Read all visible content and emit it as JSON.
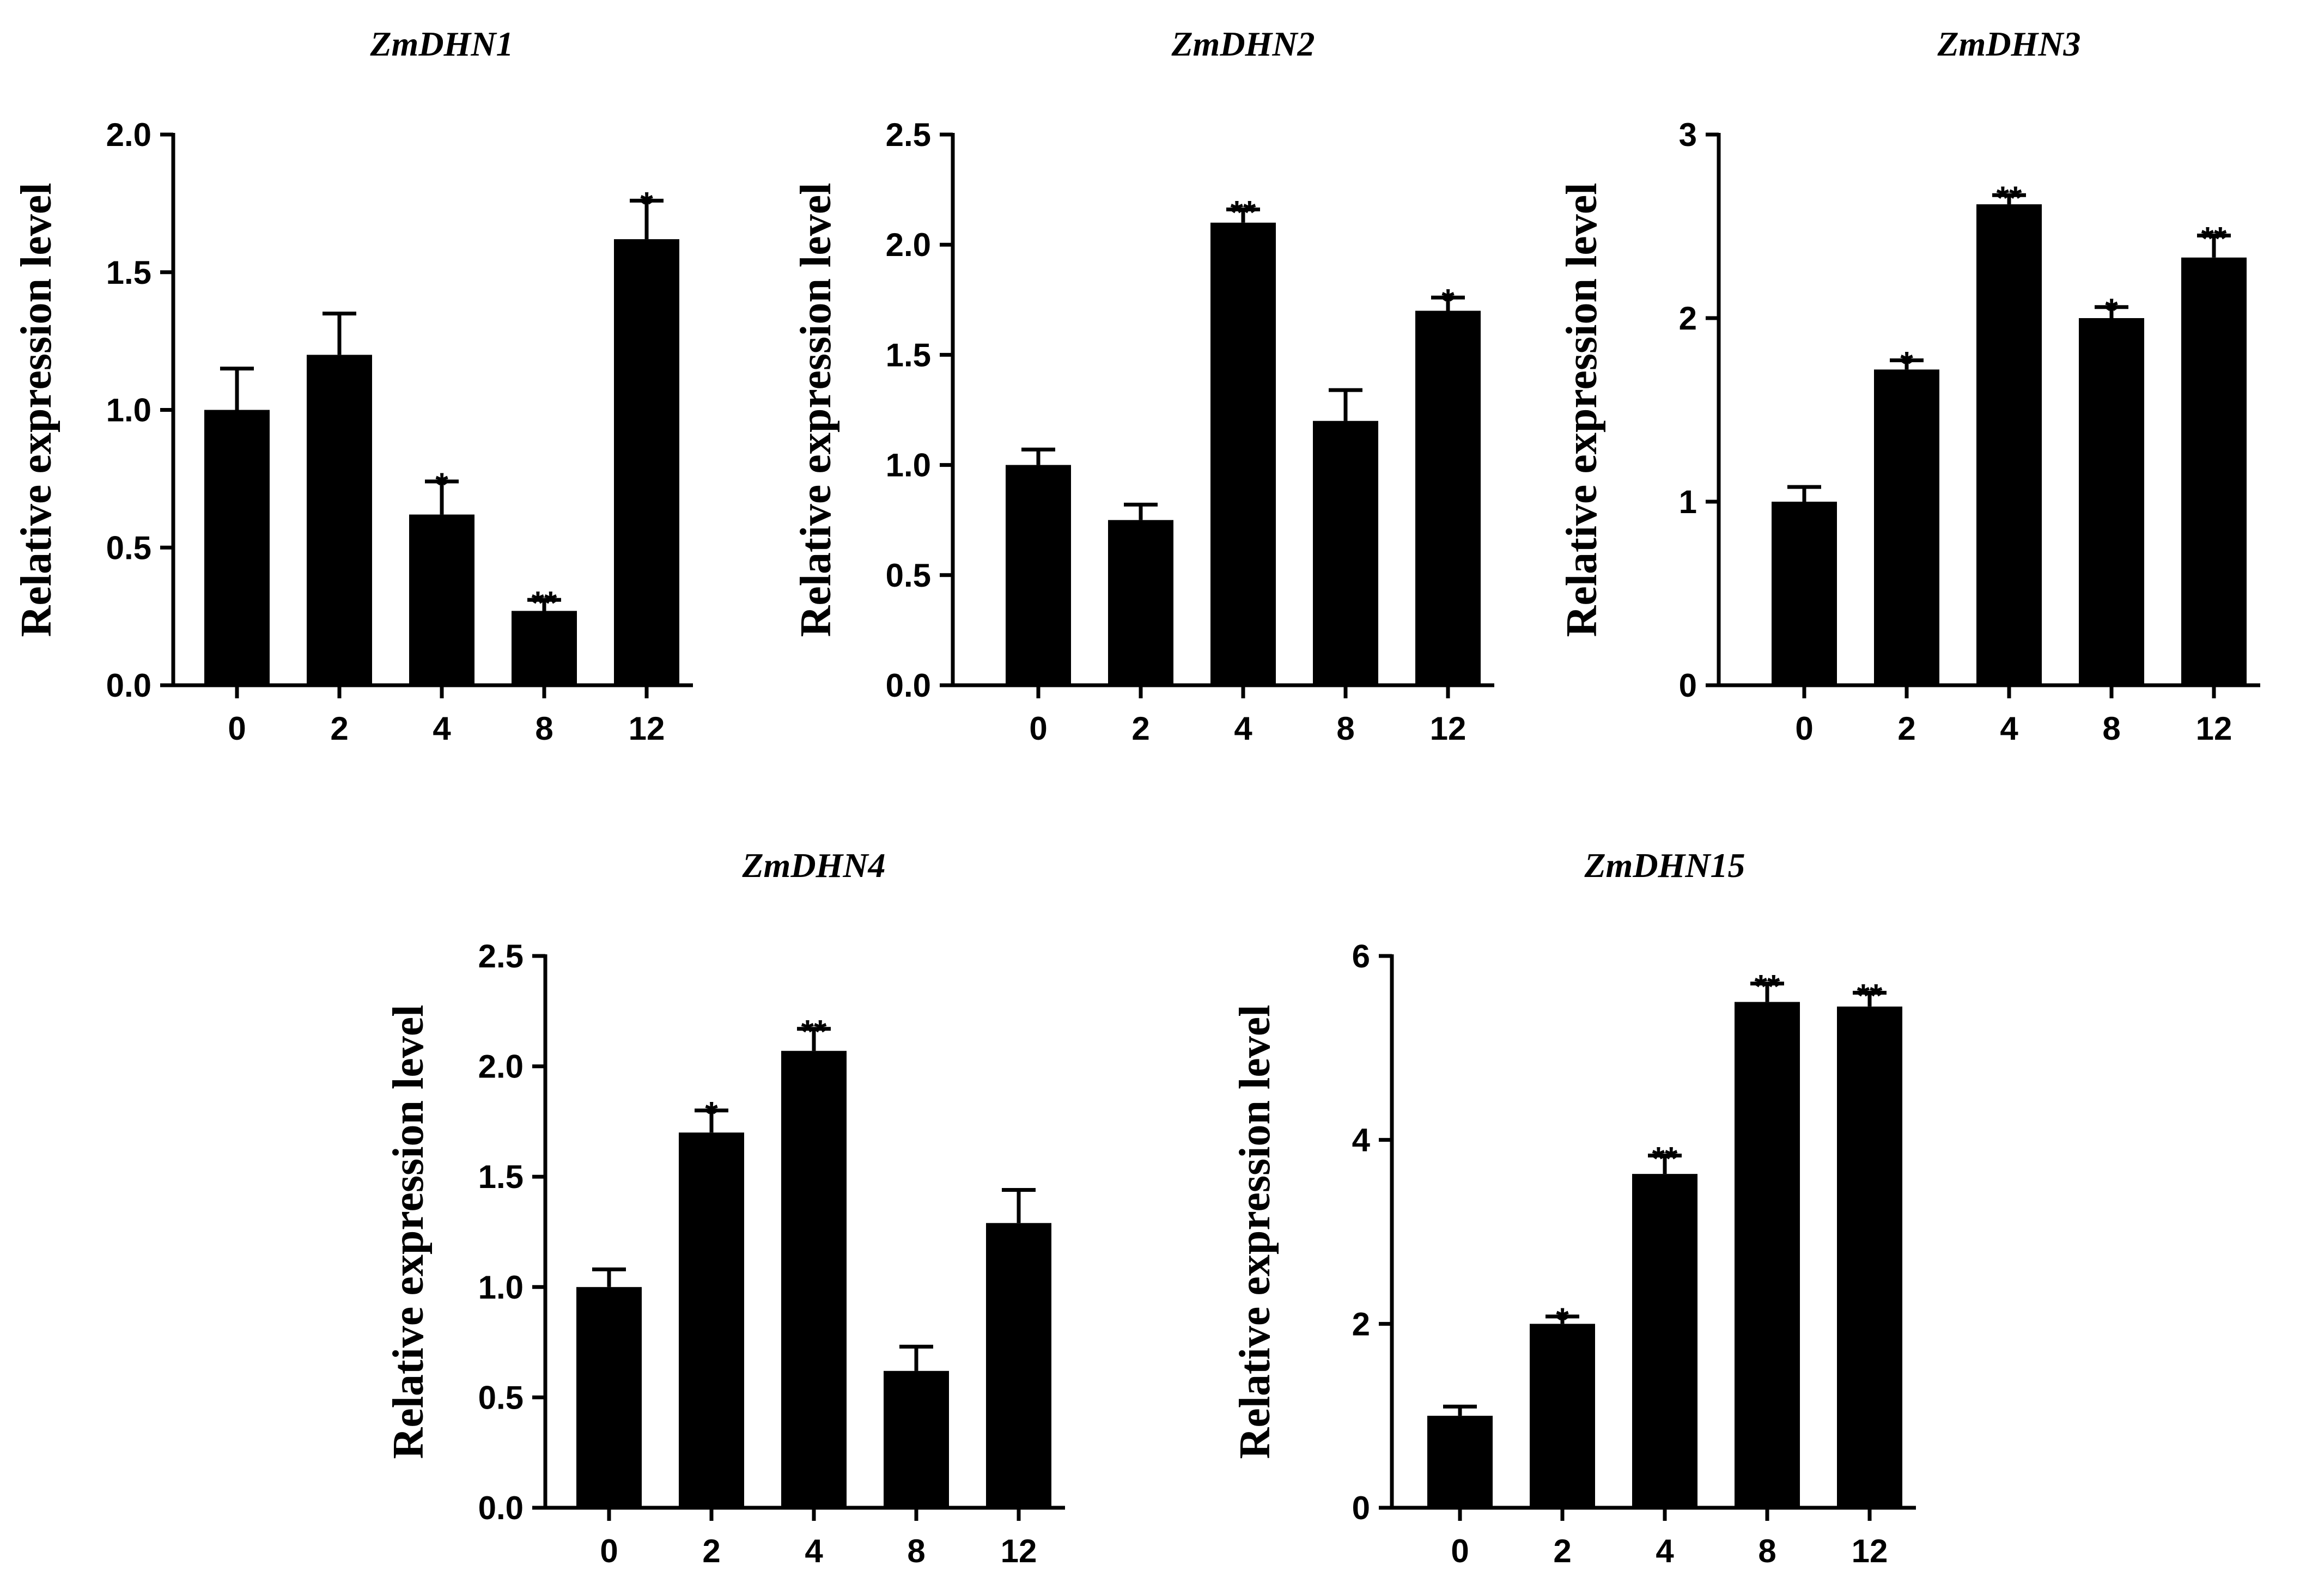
{
  "chart_data": [
    {
      "type": "bar",
      "title": "ZmDHN1",
      "xlabel": "",
      "ylabel": "Relative expression level",
      "categories": [
        "0",
        "2",
        "4",
        "8",
        "12"
      ],
      "values": [
        1.0,
        1.2,
        0.62,
        0.27,
        1.62
      ],
      "errors": [
        0.15,
        0.15,
        0.12,
        0.04,
        0.14
      ],
      "significance": [
        "",
        "",
        "*",
        "**",
        "*"
      ],
      "ylim": [
        0,
        2.0
      ],
      "yticks": [
        "0.0",
        "0.5",
        "1.0",
        "1.5",
        "2.0"
      ],
      "ytick_values": [
        0,
        0.5,
        1.0,
        1.5,
        2.0
      ]
    },
    {
      "type": "bar",
      "title": "ZmDHN2",
      "xlabel": "",
      "ylabel": "Relative expression level",
      "categories": [
        "0",
        "2",
        "4",
        "8",
        "12"
      ],
      "values": [
        1.0,
        0.75,
        2.1,
        1.2,
        1.7
      ],
      "errors": [
        0.07,
        0.07,
        0.06,
        0.14,
        0.06
      ],
      "significance": [
        "",
        "",
        "**",
        "",
        "*"
      ],
      "ylim": [
        0,
        2.5
      ],
      "yticks": [
        "0.0",
        "0.5",
        "1.0",
        "1.5",
        "2.0",
        "2.5"
      ],
      "ytick_values": [
        0,
        0.5,
        1.0,
        1.5,
        2.0,
        2.5
      ]
    },
    {
      "type": "bar",
      "title": "ZmDHN3",
      "xlabel": "",
      "ylabel": "Relative expression level",
      "categories": [
        "0",
        "2",
        "4",
        "8",
        "12"
      ],
      "values": [
        1.0,
        1.72,
        2.62,
        2.0,
        2.33
      ],
      "errors": [
        0.08,
        0.05,
        0.05,
        0.06,
        0.12
      ],
      "significance": [
        "",
        "*",
        "**",
        "*",
        "**"
      ],
      "ylim": [
        0,
        3
      ],
      "yticks": [
        "0",
        "1",
        "2",
        "3"
      ],
      "ytick_values": [
        0,
        1,
        2,
        3
      ]
    },
    {
      "type": "bar",
      "title": "ZmDHN4",
      "xlabel": "",
      "ylabel": "Relative expression level",
      "categories": [
        "0",
        "2",
        "4",
        "8",
        "12"
      ],
      "values": [
        1.0,
        1.7,
        2.07,
        0.62,
        1.29
      ],
      "errors": [
        0.08,
        0.1,
        0.1,
        0.11,
        0.15
      ],
      "significance": [
        "",
        "*",
        "**",
        "",
        ""
      ],
      "ylim": [
        0,
        2.5
      ],
      "yticks": [
        "0.0",
        "0.5",
        "1.0",
        "1.5",
        "2.0",
        "2.5"
      ],
      "ytick_values": [
        0,
        0.5,
        1.0,
        1.5,
        2.0,
        2.5
      ]
    },
    {
      "type": "bar",
      "title": "ZmDHN15",
      "xlabel": "",
      "ylabel": "Relative expression level",
      "categories": [
        "0",
        "2",
        "4",
        "8",
        "12"
      ],
      "values": [
        1.0,
        2.0,
        3.63,
        5.5,
        5.45
      ],
      "errors": [
        0.1,
        0.08,
        0.2,
        0.2,
        0.15
      ],
      "significance": [
        "",
        "*",
        "**",
        "**",
        "**"
      ],
      "ylim": [
        0,
        6
      ],
      "yticks": [
        "0",
        "2",
        "4",
        "6"
      ],
      "ytick_values": [
        0,
        2,
        4,
        6
      ]
    }
  ]
}
